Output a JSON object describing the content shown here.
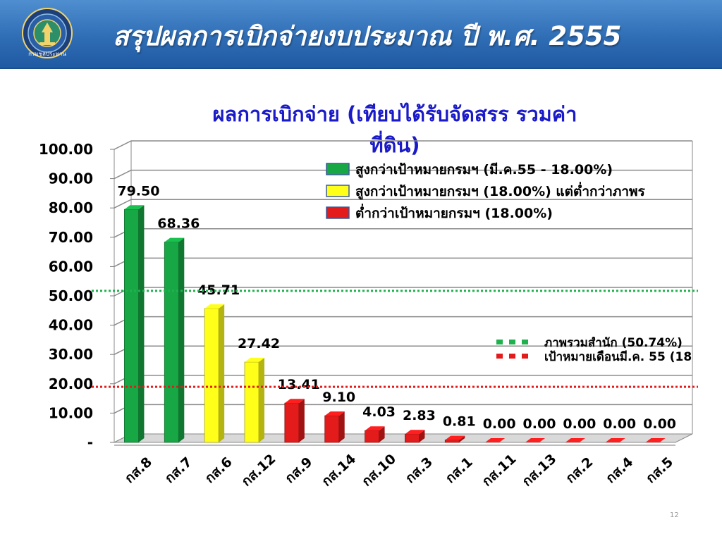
{
  "header": {
    "title": "สรุปผลการเบิกจ่ายงบประมาณ ปี พ.ศ. 2555",
    "logo_text": "กรมชลประทาน"
  },
  "slide_number": "12",
  "chart_data": {
    "type": "bar",
    "title_lines": [
      "ผลการเบิกจ่าย (เทียบได้รับจัดสรร รวมค่า",
      "ที่ดิน)"
    ],
    "categories": [
      "กส.8",
      "กส.7",
      "กส.6",
      "กส.12",
      "กส.9",
      "กส.14",
      "กส.10",
      "กส.3",
      "กส.1",
      "กส.11",
      "กส.13",
      "กส.2",
      "กส.4",
      "กส.5"
    ],
    "values": [
      79.5,
      68.36,
      45.71,
      27.42,
      13.41,
      9.1,
      4.03,
      2.83,
      0.81,
      0,
      0,
      0,
      0,
      0
    ],
    "value_labels": [
      "79.50",
      "68.36",
      "45.71",
      "27.42",
      "13.41",
      "9.10",
      "4.03",
      "2.83",
      "0.81",
      "0.00",
      "0.00",
      "0.00",
      "0.00",
      "0.00"
    ],
    "bar_groups": [
      "green",
      "green",
      "yellow",
      "yellow",
      "red",
      "red",
      "red",
      "red",
      "red",
      "red",
      "red",
      "red",
      "red",
      "red"
    ],
    "yticks": [
      "-",
      "10.00",
      "20.00",
      "30.00",
      "40.00",
      "50.00",
      "60.00",
      "70.00",
      "80.00",
      "90.00",
      "100.00"
    ],
    "ylim": [
      0,
      100
    ],
    "grid": true,
    "legend": [
      {
        "label": "สูงกว่าเป้าหมายกรมฯ (มี.ค.55 - 18.00%)",
        "color": "#17a845"
      },
      {
        "label": "สูงกว่าเป้าหมายกรมฯ (18.00%) แต่ต่ำกว่าภาพร",
        "color": "#ffff1a"
      },
      {
        "label": "ต่ำกว่าเป้าหมายกรมฯ (18.00%)",
        "color": "#e31b1b"
      }
    ],
    "reference_lines": [
      {
        "label": "ภาพรวมสำนัก (50.74%)",
        "value": 50.74,
        "color": "#1fb14e"
      },
      {
        "label": "เป้าหมายเดือนมี.ค. 55 (18",
        "value": 18.0,
        "color": "#e31b1b"
      }
    ],
    "colors": {
      "green": "#17a845",
      "yellow": "#ffff1a",
      "red": "#e31b1b"
    }
  }
}
